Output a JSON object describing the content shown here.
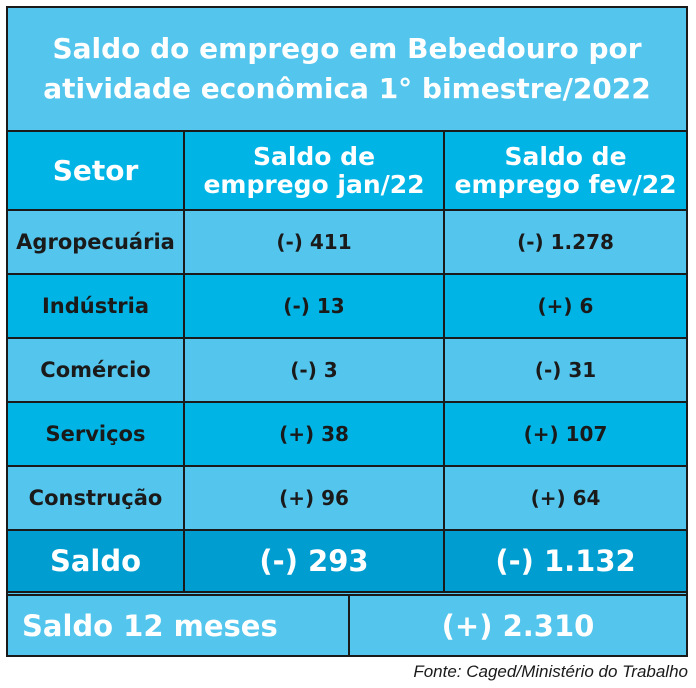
{
  "title_line1": "Saldo do emprego em Bebedouro por",
  "title_line2": "atividade econômica 1° bimestre/2022",
  "chart_data": {
    "type": "table",
    "title": "Saldo do emprego em Bebedouro por atividade econômica 1° bimestre/2022",
    "columns": [
      "Setor",
      "Saldo de emprego jan/22",
      "Saldo de emprego fev/22"
    ],
    "header": {
      "setor": "Setor",
      "col1_line1": "Saldo de",
      "col1_line2": "emprego jan/22",
      "col2_line1": "Saldo de",
      "col2_line2": "emprego fev/22"
    },
    "rows": [
      {
        "setor": "Agropecuária",
        "jan": "(-) 411",
        "fev": "(-) 1.278"
      },
      {
        "setor": "Indústria",
        "jan": "(-) 13",
        "fev": "(+) 6"
      },
      {
        "setor": "Comércio",
        "jan": "(-) 3",
        "fev": "(-) 31"
      },
      {
        "setor": "Serviços",
        "jan": "(+) 38",
        "fev": "(+) 107"
      },
      {
        "setor": "Construção",
        "jan": "(+) 96",
        "fev": "(+) 64"
      }
    ],
    "values_jan": [
      -411,
      -13,
      -3,
      38,
      96
    ],
    "values_fev": [
      -1278,
      6,
      -31,
      107,
      64
    ],
    "saldo": {
      "label": "Saldo",
      "jan": "(-) 293",
      "fev": "(-) 1.132"
    },
    "saldo_12": {
      "label": "Saldo 12 meses",
      "value": "(+) 2.310"
    }
  },
  "source": "Fonte: Caged/Ministério do Trabalho",
  "colors": {
    "light_blue": "#54c6ee",
    "mid_blue": "#00b5e6",
    "dark_blue": "#009dd1",
    "border": "#1a1a1a"
  }
}
